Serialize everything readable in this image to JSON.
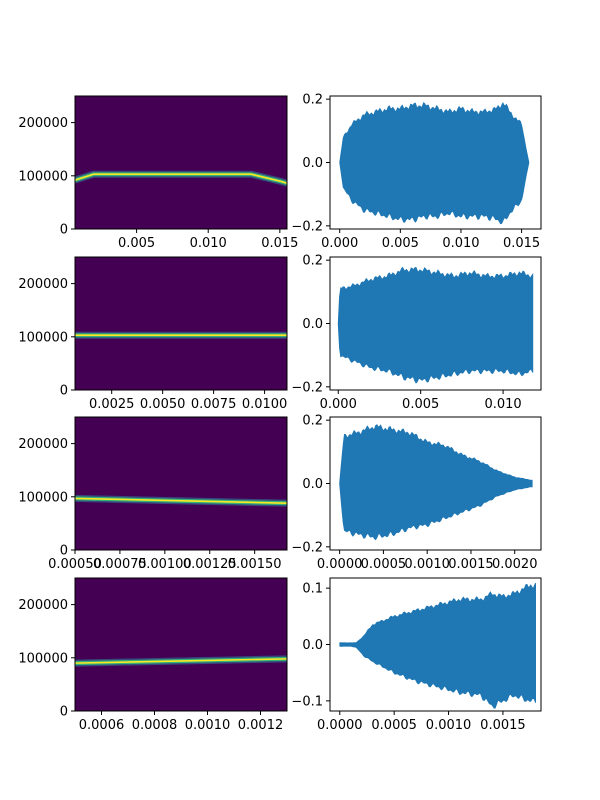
{
  "chart_data": [
    {
      "type": "heatmap",
      "xlim": [
        0.0007,
        0.0155
      ],
      "ylim": [
        0,
        250000
      ],
      "x_ticks": [
        {
          "v": 0.005,
          "label": "0.005"
        },
        {
          "v": 0.01,
          "label": "0.010"
        },
        {
          "v": 0.015,
          "label": "0.015"
        }
      ],
      "y_ticks": [
        {
          "v": 0,
          "label": "0"
        },
        {
          "v": 100000,
          "label": "100000"
        },
        {
          "v": 200000,
          "label": "200000"
        }
      ],
      "ridge": {
        "x": [
          0.0007,
          0.002,
          0.013,
          0.015,
          0.0155
        ],
        "y": [
          92000,
          103000,
          103000,
          90000,
          86000
        ]
      },
      "colormap": "viridis"
    },
    {
      "type": "area",
      "xlim": [
        -0.0008,
        0.0166
      ],
      "ylim": [
        -0.21,
        0.21
      ],
      "x_ticks": [
        {
          "v": 0.0,
          "label": "0.000"
        },
        {
          "v": 0.005,
          "label": "0.005"
        },
        {
          "v": 0.01,
          "label": "0.010"
        },
        {
          "v": 0.015,
          "label": "0.015"
        }
      ],
      "y_ticks": [
        {
          "v": -0.2,
          "label": "−0.2"
        },
        {
          "v": 0.0,
          "label": "0.0"
        },
        {
          "v": 0.2,
          "label": "0.2"
        }
      ],
      "envelope": {
        "x": [
          0.0,
          0.0003,
          0.001,
          0.002,
          0.003,
          0.004,
          0.005,
          0.006,
          0.007,
          0.008,
          0.009,
          0.01,
          0.011,
          0.012,
          0.013,
          0.0135,
          0.014,
          0.015,
          0.0156
        ],
        "upper": [
          0.0,
          0.08,
          0.12,
          0.15,
          0.16,
          0.17,
          0.17,
          0.18,
          0.18,
          0.17,
          0.16,
          0.17,
          0.16,
          0.16,
          0.17,
          0.19,
          0.16,
          0.12,
          0.0
        ],
        "lower": [
          0.0,
          -0.08,
          -0.12,
          -0.15,
          -0.16,
          -0.17,
          -0.18,
          -0.18,
          -0.17,
          -0.17,
          -0.16,
          -0.17,
          -0.17,
          -0.17,
          -0.18,
          -0.19,
          -0.16,
          -0.12,
          0.0
        ]
      },
      "color": "#1f77b4"
    },
    {
      "type": "heatmap",
      "xlim": [
        0.0007,
        0.0111
      ],
      "ylim": [
        0,
        250000
      ],
      "x_ticks": [
        {
          "v": 0.0025,
          "label": "0.0025"
        },
        {
          "v": 0.005,
          "label": "0.0050"
        },
        {
          "v": 0.0075,
          "label": "0.0075"
        },
        {
          "v": 0.01,
          "label": "0.0100"
        }
      ],
      "y_ticks": [
        {
          "v": 0,
          "label": "0"
        },
        {
          "v": 100000,
          "label": "100000"
        },
        {
          "v": 200000,
          "label": "200000"
        }
      ],
      "ridge": {
        "x": [
          0.0007,
          0.0111
        ],
        "y": [
          103000,
          103000
        ]
      },
      "colormap": "viridis"
    },
    {
      "type": "area",
      "xlim": [
        -0.0005,
        0.0123
      ],
      "ylim": [
        -0.21,
        0.21
      ],
      "x_ticks": [
        {
          "v": 0.0,
          "label": "0.000"
        },
        {
          "v": 0.005,
          "label": "0.005"
        },
        {
          "v": 0.01,
          "label": "0.010"
        }
      ],
      "y_ticks": [
        {
          "v": -0.2,
          "label": "−0.2"
        },
        {
          "v": 0.0,
          "label": "0.0"
        },
        {
          "v": 0.2,
          "label": "0.2"
        }
      ],
      "envelope": {
        "x": [
          0.0,
          0.0001,
          0.001,
          0.002,
          0.003,
          0.004,
          0.005,
          0.006,
          0.007,
          0.008,
          0.009,
          0.01,
          0.011,
          0.0118
        ],
        "upper": [
          0.0,
          0.11,
          0.12,
          0.14,
          0.15,
          0.17,
          0.17,
          0.16,
          0.15,
          0.16,
          0.15,
          0.15,
          0.16,
          0.15
        ],
        "lower": [
          0.0,
          -0.1,
          -0.12,
          -0.14,
          -0.15,
          -0.17,
          -0.18,
          -0.17,
          -0.16,
          -0.15,
          -0.15,
          -0.15,
          -0.16,
          -0.15
        ]
      },
      "color": "#1f77b4"
    },
    {
      "type": "heatmap",
      "xlim": [
        0.0005,
        0.00168
      ],
      "ylim": [
        0,
        250000
      ],
      "x_ticks": [
        {
          "v": 0.0005,
          "label": "0.00050"
        },
        {
          "v": 0.00075,
          "label": "0.00075"
        },
        {
          "v": 0.001,
          "label": "0.00100"
        },
        {
          "v": 0.00125,
          "label": "0.00125"
        },
        {
          "v": 0.0015,
          "label": "0.00150"
        }
      ],
      "y_ticks": [
        {
          "v": 0,
          "label": "0"
        },
        {
          "v": 100000,
          "label": "100000"
        },
        {
          "v": 200000,
          "label": "200000"
        }
      ],
      "ridge": {
        "x": [
          0.0005,
          0.00168
        ],
        "y": [
          97000,
          88000
        ]
      },
      "colormap": "viridis"
    },
    {
      "type": "area",
      "xlim": [
        -0.00011,
        0.0023
      ],
      "ylim": [
        -0.21,
        0.21
      ],
      "x_ticks": [
        {
          "v": 0.0,
          "label": "0.0000"
        },
        {
          "v": 0.0005,
          "label": "0.0005"
        },
        {
          "v": 0.001,
          "label": "0.0010"
        },
        {
          "v": 0.0015,
          "label": "0.0015"
        },
        {
          "v": 0.002,
          "label": "0.0020"
        }
      ],
      "y_ticks": [
        {
          "v": -0.2,
          "label": "−0.2"
        },
        {
          "v": 0.0,
          "label": "0.0"
        },
        {
          "v": 0.2,
          "label": "0.2"
        }
      ],
      "envelope": {
        "x": [
          0.0,
          5e-05,
          0.0002,
          0.0004,
          0.0006,
          0.0008,
          0.001,
          0.0012,
          0.0014,
          0.0016,
          0.0018,
          0.002,
          0.0022
        ],
        "upper": [
          0.0,
          0.15,
          0.16,
          0.18,
          0.17,
          0.16,
          0.13,
          0.12,
          0.09,
          0.07,
          0.04,
          0.02,
          0.01
        ],
        "lower": [
          0.0,
          -0.15,
          -0.16,
          -0.17,
          -0.16,
          -0.14,
          -0.13,
          -0.11,
          -0.09,
          -0.07,
          -0.04,
          -0.02,
          -0.01
        ]
      },
      "color": "#1f77b4"
    },
    {
      "type": "heatmap",
      "xlim": [
        0.0005,
        0.0013
      ],
      "ylim": [
        0,
        250000
      ],
      "x_ticks": [
        {
          "v": 0.0006,
          "label": "0.0006"
        },
        {
          "v": 0.0008,
          "label": "0.0008"
        },
        {
          "v": 0.001,
          "label": "0.0010"
        },
        {
          "v": 0.0012,
          "label": "0.0012"
        }
      ],
      "y_ticks": [
        {
          "v": 0,
          "label": "0"
        },
        {
          "v": 100000,
          "label": "100000"
        },
        {
          "v": 200000,
          "label": "200000"
        }
      ],
      "ridge": {
        "x": [
          0.0005,
          0.0013
        ],
        "y": [
          90000,
          98000
        ]
      },
      "colormap": "viridis"
    },
    {
      "type": "area",
      "xlim": [
        -9e-05,
        0.00185
      ],
      "ylim": [
        -0.118,
        0.118
      ],
      "x_ticks": [
        {
          "v": 0.0,
          "label": "0.0000"
        },
        {
          "v": 0.0005,
          "label": "0.0005"
        },
        {
          "v": 0.001,
          "label": "0.0010"
        },
        {
          "v": 0.0015,
          "label": "0.0015"
        }
      ],
      "y_ticks": [
        {
          "v": -0.1,
          "label": "−0.1"
        },
        {
          "v": 0.0,
          "label": "0.0"
        },
        {
          "v": 0.1,
          "label": "0.1"
        }
      ],
      "envelope": {
        "x": [
          0.0,
          0.0001,
          0.00015,
          0.00022,
          0.0003,
          0.0005,
          0.0007,
          0.0009,
          0.0011,
          0.0013,
          0.0014,
          0.0015,
          0.0016,
          0.00175,
          0.0018
        ],
        "upper": [
          0.003,
          0.003,
          0.003,
          0.015,
          0.035,
          0.05,
          0.06,
          0.07,
          0.08,
          0.08,
          0.09,
          0.085,
          0.09,
          0.105,
          0.105
        ],
        "lower": [
          -0.003,
          -0.003,
          -0.005,
          -0.02,
          -0.03,
          -0.05,
          -0.065,
          -0.075,
          -0.085,
          -0.09,
          -0.11,
          -0.1,
          -0.09,
          -0.1,
          -0.1
        ]
      },
      "color": "#1f77b4"
    }
  ]
}
